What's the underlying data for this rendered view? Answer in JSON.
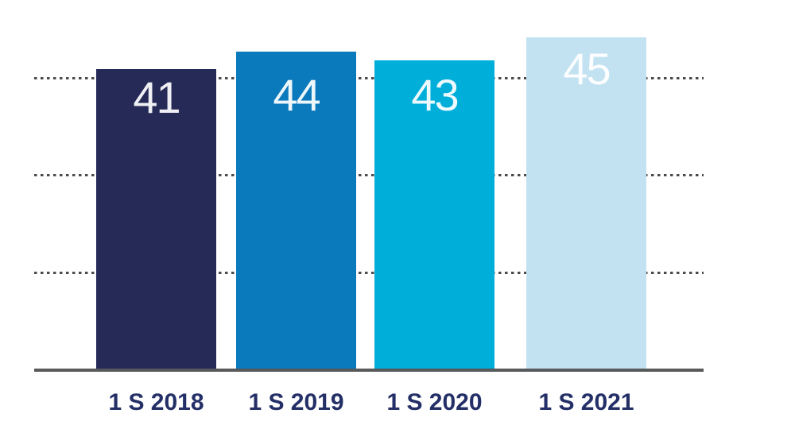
{
  "chart_data": {
    "type": "bar",
    "title": "",
    "xlabel": "",
    "ylabel": "",
    "categories": [
      "1 S 2018",
      "1 S 2019",
      "1 S 2020",
      "1 S 2021"
    ],
    "values": [
      41,
      44,
      43,
      45
    ],
    "data_labels_shown": true,
    "legend": "none",
    "y_axis_tick_labels": "none",
    "gridlines": {
      "style": "dotted",
      "count": 3,
      "color": "#4b4b4d"
    },
    "colors": {
      "bars": [
        "#262a57",
        "#0b7abc",
        "#00aeda",
        "#c2e2f2"
      ],
      "value_label": "#ffffff",
      "category_label": "#232f66",
      "axis_line": "#58595b",
      "background": "#ffffff"
    }
  }
}
